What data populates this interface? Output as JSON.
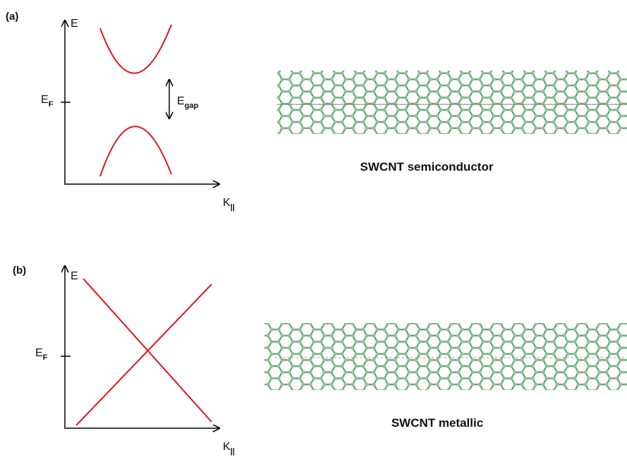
{
  "panel_a": {
    "label": "(a)",
    "energy_axis": "E",
    "fermi_level": {
      "main": "E",
      "sub": "F"
    },
    "gap": {
      "main": "E",
      "sub": "gap"
    },
    "momentum_axis": {
      "main": "K",
      "sub": "||"
    },
    "caption": "SWCNT semiconductor"
  },
  "panel_b": {
    "label": "(b)",
    "energy_axis": "E",
    "fermi_level": {
      "main": "E",
      "sub": "F"
    },
    "momentum_axis": {
      "main": "K",
      "sub": "||"
    },
    "caption": "SWCNT metallic"
  }
}
